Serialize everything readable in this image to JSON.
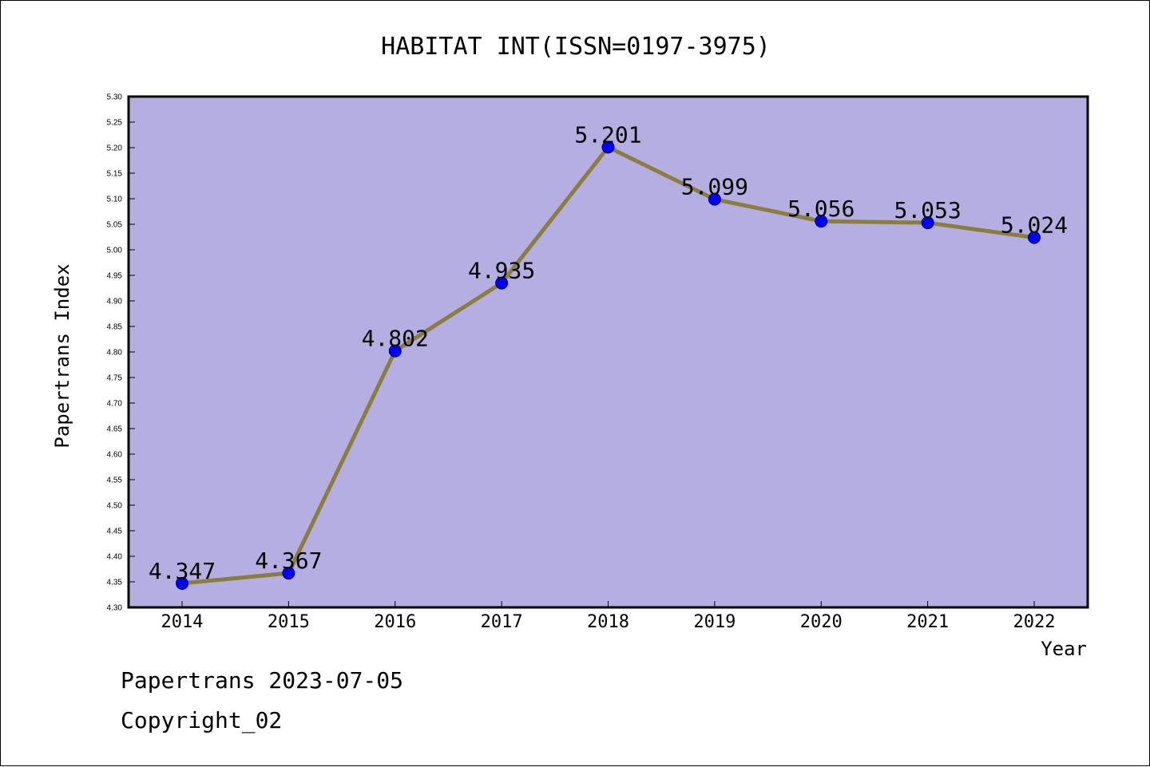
{
  "chart_data": {
    "type": "line",
    "title": "HABITAT INT(ISSN=0197-3975)",
    "xlabel": "Year",
    "ylabel": "Papertrans Index",
    "categories": [
      "2014",
      "2015",
      "2016",
      "2017",
      "2018",
      "2019",
      "2020",
      "2021",
      "2022"
    ],
    "series": [
      {
        "values": [
          4.347,
          4.367,
          4.802,
          4.935,
          5.201,
          5.099,
          5.056,
          5.053,
          5.024
        ],
        "labels": [
          "4.347",
          "4.367",
          "4.802",
          "4.935",
          "5.201",
          "5.099",
          "5.056",
          "5.053",
          "5.024"
        ]
      }
    ],
    "ylim": [
      4.3,
      5.3
    ],
    "yticks": [
      "4.30",
      "4.35",
      "4.40",
      "4.45",
      "4.50",
      "4.55",
      "4.60",
      "4.65",
      "4.70",
      "4.75",
      "4.80",
      "4.85",
      "4.90",
      "4.95",
      "5.00",
      "5.05",
      "5.10",
      "5.15",
      "5.20",
      "5.25",
      "5.30"
    ],
    "grid": false,
    "colors": {
      "plot_background": "#b5aee2",
      "line": "#8b7d3c",
      "marker": "#0000ff"
    }
  },
  "footer": {
    "line1": "Papertrans 2023-07-05",
    "line2": "Copyright_02"
  }
}
